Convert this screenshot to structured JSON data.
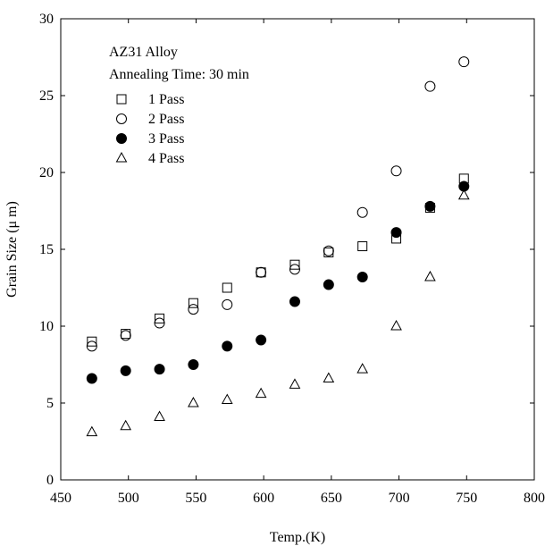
{
  "chart_data": {
    "type": "scatter",
    "xlabel": "Temp.(K)",
    "ylabel": "Grain Size (μ m)",
    "xlim": [
      450,
      800
    ],
    "ylim": [
      0,
      30
    ],
    "xticks": [
      450,
      500,
      550,
      600,
      650,
      700,
      750,
      800
    ],
    "yticks": [
      0,
      5,
      10,
      15,
      20,
      25,
      30
    ],
    "grid": false,
    "annotations": [
      "AZ31 Alloy",
      "Annealing Time: 30 min"
    ],
    "legend_position": "top-left",
    "series": [
      {
        "name": "1 Pass",
        "marker": "open-square",
        "x": [
          473,
          498,
          523,
          548,
          573,
          598,
          623,
          648,
          673,
          698,
          723,
          748
        ],
        "y": [
          9.0,
          9.5,
          10.5,
          11.5,
          12.5,
          13.5,
          14.0,
          14.8,
          15.2,
          15.7,
          17.7,
          19.6
        ]
      },
      {
        "name": "2 Pass",
        "marker": "open-circle",
        "x": [
          473,
          498,
          523,
          548,
          573,
          598,
          623,
          648,
          673,
          698,
          723,
          748
        ],
        "y": [
          8.7,
          9.4,
          10.2,
          11.1,
          11.4,
          13.5,
          13.7,
          14.9,
          17.4,
          20.1,
          25.6,
          27.2
        ]
      },
      {
        "name": "3 Pass",
        "marker": "filled-circle",
        "x": [
          473,
          498,
          523,
          548,
          573,
          598,
          623,
          648,
          673,
          698,
          723,
          748
        ],
        "y": [
          6.6,
          7.1,
          7.2,
          7.5,
          8.7,
          9.1,
          11.6,
          12.7,
          13.2,
          16.1,
          17.8,
          19.1
        ]
      },
      {
        "name": "4 Pass",
        "marker": "open-triangle",
        "x": [
          473,
          498,
          523,
          548,
          573,
          598,
          623,
          648,
          673,
          698,
          723,
          748
        ],
        "y": [
          3.1,
          3.5,
          4.1,
          5.0,
          5.2,
          5.6,
          6.2,
          6.6,
          7.2,
          10.0,
          13.2,
          18.5
        ]
      }
    ]
  }
}
